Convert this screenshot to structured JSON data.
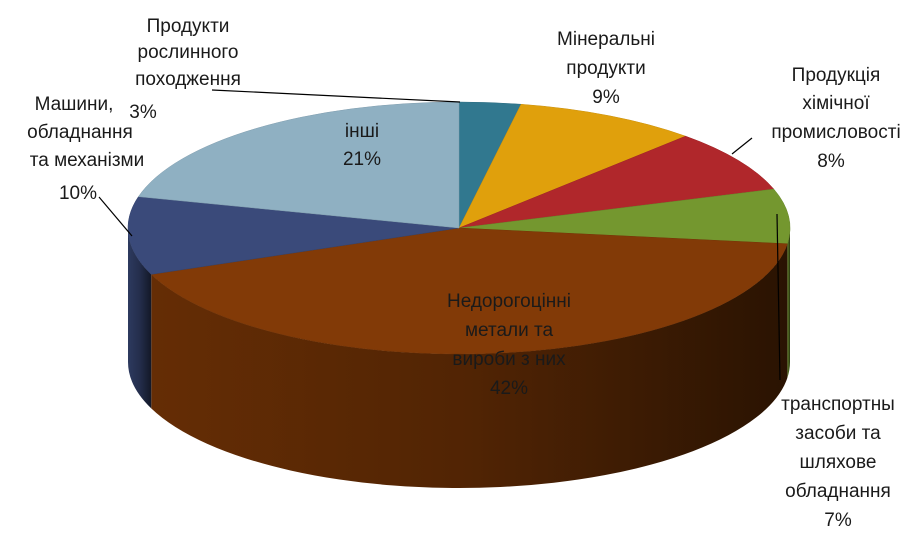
{
  "chart_data": {
    "type": "pie",
    "title": "",
    "slices": [
      {
        "label_lines": [
          "Продукти",
          "рослинного",
          "походження"
        ],
        "pct_label": "3%",
        "value": 3,
        "color": "#31788f"
      },
      {
        "label_lines": [
          "Мінеральні",
          "продукти"
        ],
        "pct_label": "9%",
        "value": 9,
        "color": "#e0a00c"
      },
      {
        "label_lines": [
          "Продукція",
          "хімічної",
          "промисловості"
        ],
        "pct_label": "8%",
        "value": 8,
        "color": "#b0272b"
      },
      {
        "label_lines": [
          "транспортны",
          "засоби та",
          "шляхове",
          "обладнання"
        ],
        "pct_label": "7%",
        "value": 7,
        "color": "#74972f"
      },
      {
        "label_lines": [
          "Недорогоцінні",
          "метали та",
          "вироби з них"
        ],
        "pct_label": "42%",
        "value": 42,
        "color": "#823a07"
      },
      {
        "label_lines": [
          "Машини,",
          "обладнання",
          "та механізми"
        ],
        "pct_label": "10%",
        "value": 10,
        "color": "#3a4a7a"
      },
      {
        "label_lines": [
          "інші"
        ],
        "pct_label": "21%",
        "value": 21,
        "color": "#8fb0c2"
      }
    ]
  }
}
